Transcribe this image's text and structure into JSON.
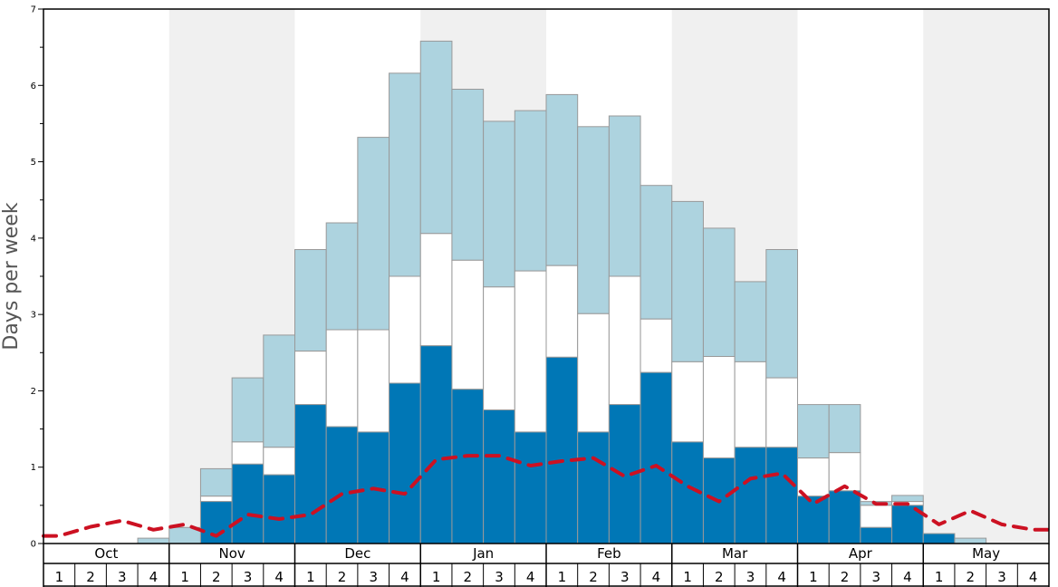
{
  "chart_data": {
    "type": "bar",
    "ylabel": "Days per week",
    "ylim": [
      0,
      7
    ],
    "yticks": [
      "0",
      "1",
      "2",
      "3",
      "4",
      "5",
      "6",
      "7"
    ],
    "months": [
      "Oct",
      "Nov",
      "Dec",
      "Jan",
      "Feb",
      "Mar",
      "Apr",
      "May"
    ],
    "weeks": [
      "1",
      "2",
      "3",
      "4"
    ],
    "shaded_months": [
      "Nov",
      "Jan",
      "Mar",
      "May"
    ],
    "colors": {
      "dark": "#0077b6",
      "middle": "#ffffff",
      "light": "#add3df",
      "line": "#cc1122",
      "shade": "#f0f0f0",
      "bar_border": "#999999"
    },
    "series": [
      {
        "values": [
          0,
          0,
          0,
          0,
          0,
          0.55,
          1.04,
          0.9,
          1.82,
          1.53,
          1.46,
          2.1,
          2.59,
          2.02,
          1.75,
          1.46,
          2.44,
          1.46,
          1.82,
          2.24,
          1.33,
          1.12,
          1.26,
          1.26,
          0.62,
          0.69,
          0.21,
          0.5,
          0.13,
          0,
          0,
          0
        ]
      },
      {
        "values": [
          0,
          0,
          0,
          0,
          0,
          0.62,
          1.33,
          1.26,
          2.52,
          2.8,
          2.8,
          3.5,
          4.06,
          3.71,
          3.36,
          3.57,
          3.64,
          3.01,
          3.5,
          2.94,
          2.38,
          2.45,
          2.38,
          2.17,
          1.12,
          1.19,
          0.5,
          0.55,
          0.13,
          0,
          0,
          0
        ]
      },
      {
        "values": [
          0,
          0,
          0,
          0.07,
          0.21,
          0.98,
          2.17,
          2.73,
          3.85,
          4.2,
          5.32,
          6.16,
          6.58,
          5.95,
          5.53,
          5.67,
          5.88,
          5.46,
          5.6,
          4.69,
          4.48,
          4.13,
          3.43,
          3.85,
          1.82,
          1.82,
          0.55,
          0.63,
          0.13,
          0.07,
          0,
          0
        ]
      },
      {
        "values": [
          0.1,
          0.22,
          0.3,
          0.18,
          0.25,
          0.1,
          0.38,
          0.32,
          0.38,
          0.65,
          0.72,
          0.65,
          1.1,
          1.15,
          1.15,
          1.02,
          1.08,
          1.12,
          0.88,
          1.02,
          0.75,
          0.55,
          0.85,
          0.92,
          0.52,
          0.75,
          0.52,
          0.52,
          0.25,
          0.43,
          0.25,
          0.18
        ]
      }
    ]
  }
}
